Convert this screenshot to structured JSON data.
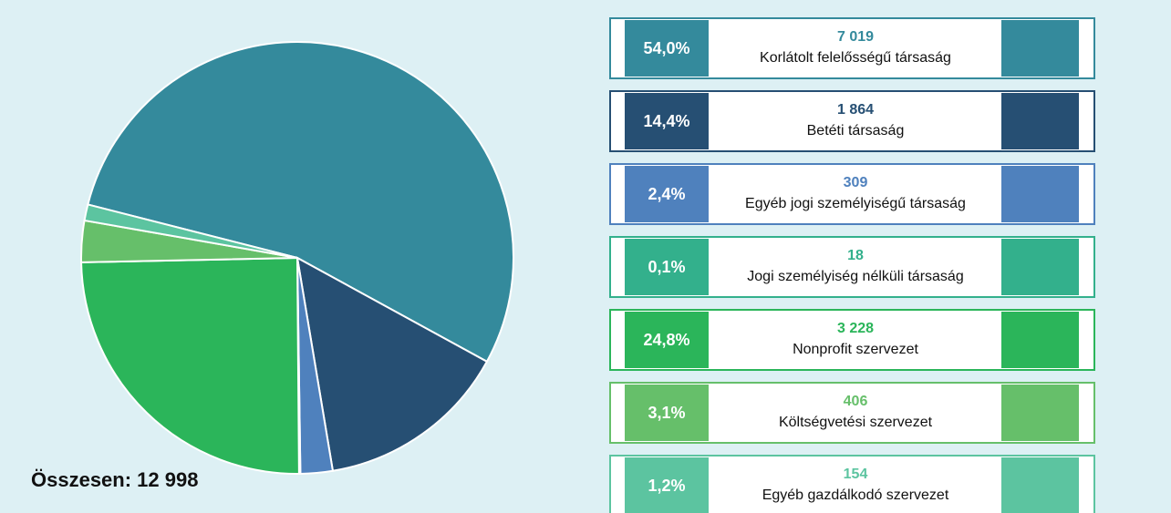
{
  "chart_data": {
    "type": "pie",
    "categories": [
      "Korlátolt felelősségű társaság",
      "Betéti társaság",
      "Egyéb jogi személyiségű társaság",
      "Jogi személyiség nélküli társaság",
      "Nonprofit szervezet",
      "Költségvetési szervezet",
      "Egyéb gazdálkodó szervezet"
    ],
    "values": [
      54.0,
      14.4,
      2.4,
      0.1,
      24.8,
      3.1,
      1.2
    ],
    "value_labels": [
      "54,0%",
      "14,4%",
      "2,4%",
      "0,1%",
      "24,8%",
      "3,1%",
      "1,2%"
    ],
    "counts": [
      7019,
      1864,
      309,
      18,
      3228,
      406,
      154
    ],
    "count_labels": [
      "7 019",
      "1 864",
      "309",
      "18",
      "3 228",
      "406",
      "154"
    ],
    "colors": [
      "#348a9c",
      "#264f73",
      "#4f81bd",
      "#33b08c",
      "#2bb55a",
      "#66bf6a",
      "#5cc4a0"
    ],
    "total": "Összesen: 12 998"
  }
}
